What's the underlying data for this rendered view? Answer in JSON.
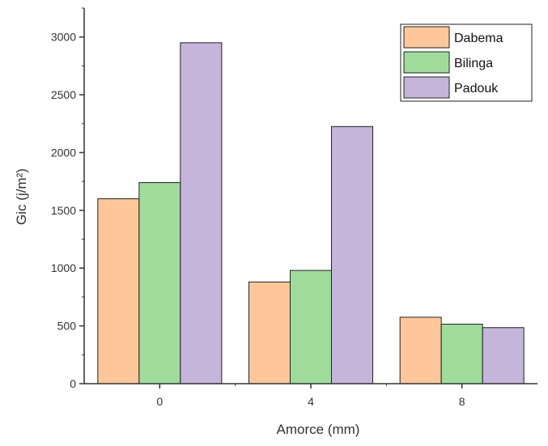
{
  "chart_data": {
    "type": "bar",
    "xlabel": "Amorce (mm)",
    "ylabel": "Gic (j/m²)",
    "categories": [
      "0",
      "4",
      "8"
    ],
    "ylim": [
      0,
      3250
    ],
    "yticks": [
      0,
      500,
      1000,
      1500,
      2000,
      2500,
      3000
    ],
    "grid": false,
    "legend_position": "top-right",
    "series": [
      {
        "name": "Dabema",
        "color": "#fdc79a",
        "values": [
          1600,
          880,
          575
        ]
      },
      {
        "name": "Bilinga",
        "color": "#9fdc9c",
        "values": [
          1740,
          980,
          515
        ]
      },
      {
        "name": "Padouk",
        "color": "#c5b5da",
        "values": [
          2950,
          2225,
          485
        ]
      }
    ]
  }
}
